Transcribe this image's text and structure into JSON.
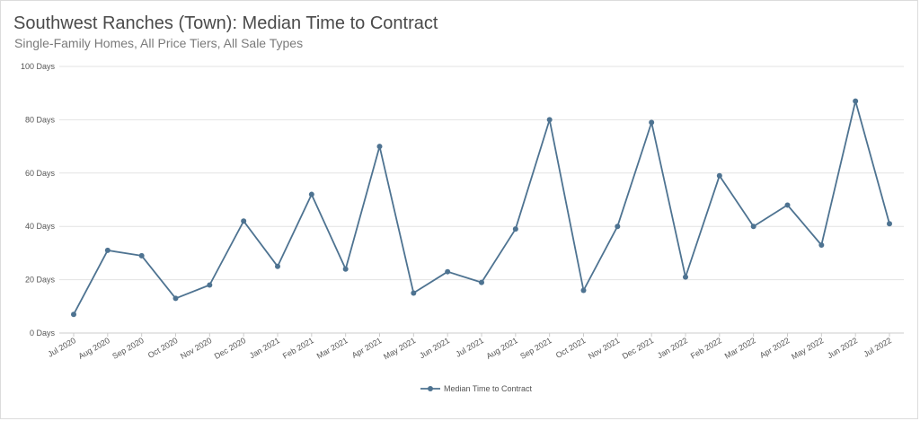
{
  "header": {
    "title": "Southwest Ranches (Town): Median Time to Contract",
    "subtitle": "Single-Family Homes, All Price Tiers, All Sale Types"
  },
  "colors": {
    "series": "#4e7391",
    "grid": "#e3e3e3",
    "axis": "#cccccc"
  },
  "chart_data": {
    "type": "line",
    "title": "Southwest Ranches (Town): Median Time to Contract",
    "subtitle": "Single-Family Homes, All Price Tiers, All Sale Types",
    "xlabel": "",
    "ylabel": "",
    "ylim": [
      0,
      100
    ],
    "y_ticks": [
      0,
      20,
      40,
      60,
      80,
      100
    ],
    "y_tick_labels": [
      "0 Days",
      "20 Days",
      "40 Days",
      "60 Days",
      "80 Days",
      "100 Days"
    ],
    "grid": true,
    "legend_position": "bottom",
    "categories": [
      "Jul 2020",
      "Aug 2020",
      "Sep 2020",
      "Oct 2020",
      "Nov 2020",
      "Dec 2020",
      "Jan 2021",
      "Feb 2021",
      "Mar 2021",
      "Apr 2021",
      "May 2021",
      "Jun 2021",
      "Jul 2021",
      "Aug 2021",
      "Sep 2021",
      "Oct 2021",
      "Nov 2021",
      "Dec 2021",
      "Jan 2022",
      "Feb 2022",
      "Mar 2022",
      "Apr 2022",
      "May 2022",
      "Jun 2022",
      "Jul 2022"
    ],
    "series": [
      {
        "name": "Median Time to Contract",
        "values": [
          7,
          31,
          29,
          13,
          18,
          42,
          25,
          52,
          24,
          70,
          15,
          23,
          19,
          39,
          80,
          16,
          40,
          79,
          21,
          59,
          40,
          48,
          33,
          87,
          41
        ]
      }
    ]
  }
}
